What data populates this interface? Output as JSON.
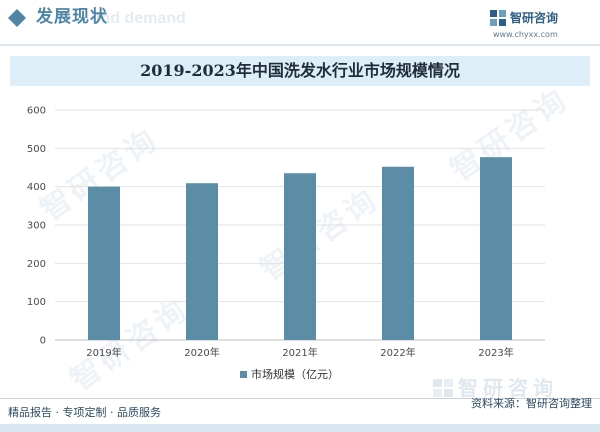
{
  "header": {
    "section_title": "发展现状",
    "section_title_bg": "ind demand",
    "logo_name": "智研咨询",
    "logo_url": "www.chyxx.com"
  },
  "chart_data": {
    "type": "bar",
    "title": "2019-2023年中国洗发水行业市场规模情况",
    "categories": [
      "2019年",
      "2020年",
      "2021年",
      "2022年",
      "2023年"
    ],
    "series": [
      {
        "name": "市场规模（亿元）",
        "values": [
          400,
          409,
          435,
          452,
          477
        ]
      }
    ],
    "ylim": [
      0,
      600
    ],
    "yticks": [
      0,
      100,
      200,
      300,
      400,
      500,
      600
    ],
    "grid": true,
    "legend_position": "bottom",
    "colors": {
      "bar": "#5b8ea6",
      "grid": "#e2e2e2",
      "axis": "#bfbfbf"
    }
  },
  "watermark": {
    "text": "智研咨询"
  },
  "footer": {
    "left": "精品报告 · 专项定制 · 品质服务",
    "right": "资料来源：智研咨询整理",
    "logo_text": "智研咨询"
  },
  "colors": {
    "accent": "#4f86a8",
    "title_band": "#ddeef8"
  }
}
